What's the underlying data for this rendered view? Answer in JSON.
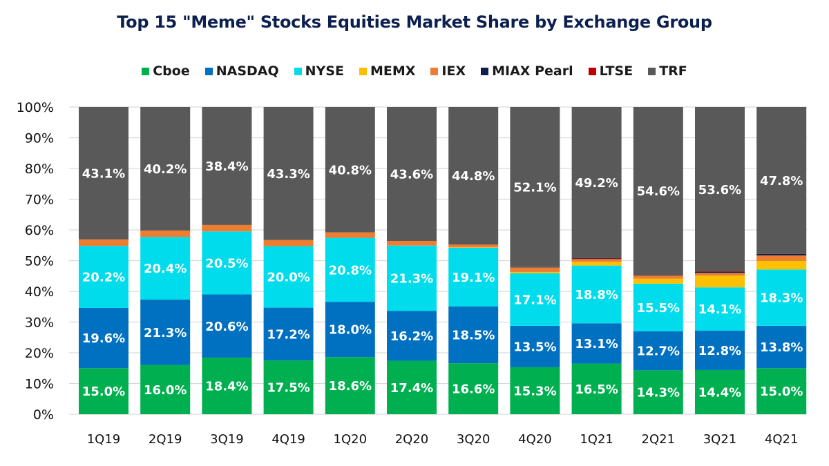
{
  "chart_data": {
    "type": "bar",
    "stacked": true,
    "title": "Top 15 \"Meme\" Stocks Equities Market Share by Exchange Group",
    "xlabel": "",
    "ylabel": "",
    "ylim": [
      0,
      100
    ],
    "yticks": [
      "0%",
      "10%",
      "20%",
      "30%",
      "40%",
      "50%",
      "60%",
      "70%",
      "80%",
      "90%",
      "100%"
    ],
    "grid": true,
    "legend_position": "top",
    "categories": [
      "1Q19",
      "2Q19",
      "3Q19",
      "4Q19",
      "1Q20",
      "2Q20",
      "3Q20",
      "4Q20",
      "1Q21",
      "2Q21",
      "3Q21",
      "4Q21"
    ],
    "series": [
      {
        "name": "Cboe",
        "color": "#00b050",
        "labeled": true,
        "values": [
          15.0,
          16.0,
          18.4,
          17.5,
          18.6,
          17.4,
          16.6,
          15.3,
          16.5,
          14.3,
          14.4,
          15.0
        ]
      },
      {
        "name": "NASDAQ",
        "color": "#0070c0",
        "labeled": true,
        "values": [
          19.6,
          21.3,
          20.6,
          17.2,
          18.0,
          16.2,
          18.5,
          13.5,
          13.1,
          12.7,
          12.8,
          13.8
        ]
      },
      {
        "name": "NYSE",
        "color": "#00dcec",
        "labeled": true,
        "values": [
          20.2,
          20.4,
          20.5,
          20.0,
          20.8,
          21.3,
          19.1,
          17.1,
          18.8,
          15.5,
          14.1,
          18.3
        ]
      },
      {
        "name": "MEMX",
        "color": "#ffc000",
        "labeled": false,
        "values": [
          0,
          0,
          0,
          0,
          0,
          0,
          0.1,
          0.4,
          1.2,
          1.6,
          3.8,
          2.8
        ]
      },
      {
        "name": "IEX",
        "color": "#ed7d31",
        "labeled": false,
        "values": [
          2.1,
          2.1,
          2.1,
          2.0,
          1.8,
          1.5,
          0.9,
          1.5,
          0.9,
          1.1,
          0.9,
          1.8
        ]
      },
      {
        "name": "MIAX Pearl",
        "color": "#0c2050",
        "labeled": false,
        "values": [
          0,
          0,
          0,
          0,
          0,
          0,
          0,
          0.1,
          0.2,
          0.2,
          0.3,
          0.5
        ]
      },
      {
        "name": "LTSE",
        "color": "#c00000",
        "labeled": false,
        "values": [
          0,
          0,
          0,
          0,
          0,
          0,
          0,
          0,
          0.1,
          0,
          0.1,
          0
        ]
      },
      {
        "name": "TRF",
        "color": "#595959",
        "labeled": true,
        "values": [
          43.1,
          40.2,
          38.4,
          43.3,
          40.8,
          43.6,
          44.8,
          52.1,
          49.2,
          54.6,
          53.6,
          47.8
        ]
      }
    ],
    "data_labels": {
      "Cboe": [
        "15.0%",
        "16.0%",
        "18.4%",
        "17.5%",
        "18.6%",
        "17.4%",
        "16.6%",
        "15.3%",
        "16.5%",
        "14.3%",
        "14.4%",
        "15.0%"
      ],
      "NASDAQ": [
        "19.6%",
        "21.3%",
        "20.6%",
        "17.2%",
        "18.0%",
        "16.2%",
        "18.5%",
        "13.5%",
        "13.1%",
        "12.7%",
        "12.8%",
        "13.8%"
      ],
      "NYSE": [
        "20.2%",
        "20.4%",
        "20.5%",
        "20.0%",
        "20.8%",
        "21.3%",
        "19.1%",
        "17.1%",
        "18.8%",
        "15.5%",
        "14.1%",
        "18.3%"
      ],
      "TRF": [
        "43.1%",
        "40.2%",
        "38.4%",
        "43.3%",
        "40.8%",
        "43.6%",
        "44.8%",
        "52.1%",
        "49.2%",
        "54.6%",
        "53.6%",
        "47.8%"
      ]
    }
  }
}
